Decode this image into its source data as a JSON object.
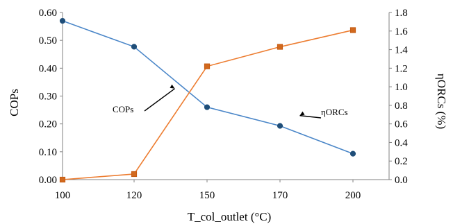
{
  "chart_data": {
    "type": "line",
    "x": [
      100,
      120,
      150,
      170,
      200
    ],
    "x_tick_labels": [
      "100",
      "120",
      "150",
      "170",
      "200"
    ],
    "xlabel": "T_col_outlet (°C)",
    "ylabel_left": "COPs",
    "ylabel_right": "ηORCs (%)",
    "ylim_left": [
      0,
      0.6
    ],
    "ylim_right": [
      0,
      1.8
    ],
    "y_left_tick_labels": [
      "0.00",
      "0.10",
      "0.20",
      "0.30",
      "0.40",
      "0.50",
      "0.60"
    ],
    "y_right_tick_labels": [
      "0.0",
      "0.2",
      "0.4",
      "0.6",
      "0.8",
      "1.0",
      "1.2",
      "1.4",
      "1.6",
      "1.8"
    ],
    "grid": false,
    "legend": "none",
    "series": [
      {
        "name": "COPs",
        "axis": "left",
        "color": "#4a86c8",
        "marker": "circle",
        "values": [
          0.57,
          0.477,
          0.26,
          0.193,
          0.093
        ]
      },
      {
        "name": "ηORCs",
        "axis": "right",
        "color": "#ed7d31",
        "marker": "square",
        "values": [
          0.0,
          0.06,
          1.22,
          1.43,
          1.61
        ]
      }
    ],
    "annotations": [
      {
        "text": "COPs",
        "x": 137,
        "y_right": 0.98
      },
      {
        "text": "ηORCs",
        "x": 177,
        "y_left": 0.225
      }
    ]
  }
}
